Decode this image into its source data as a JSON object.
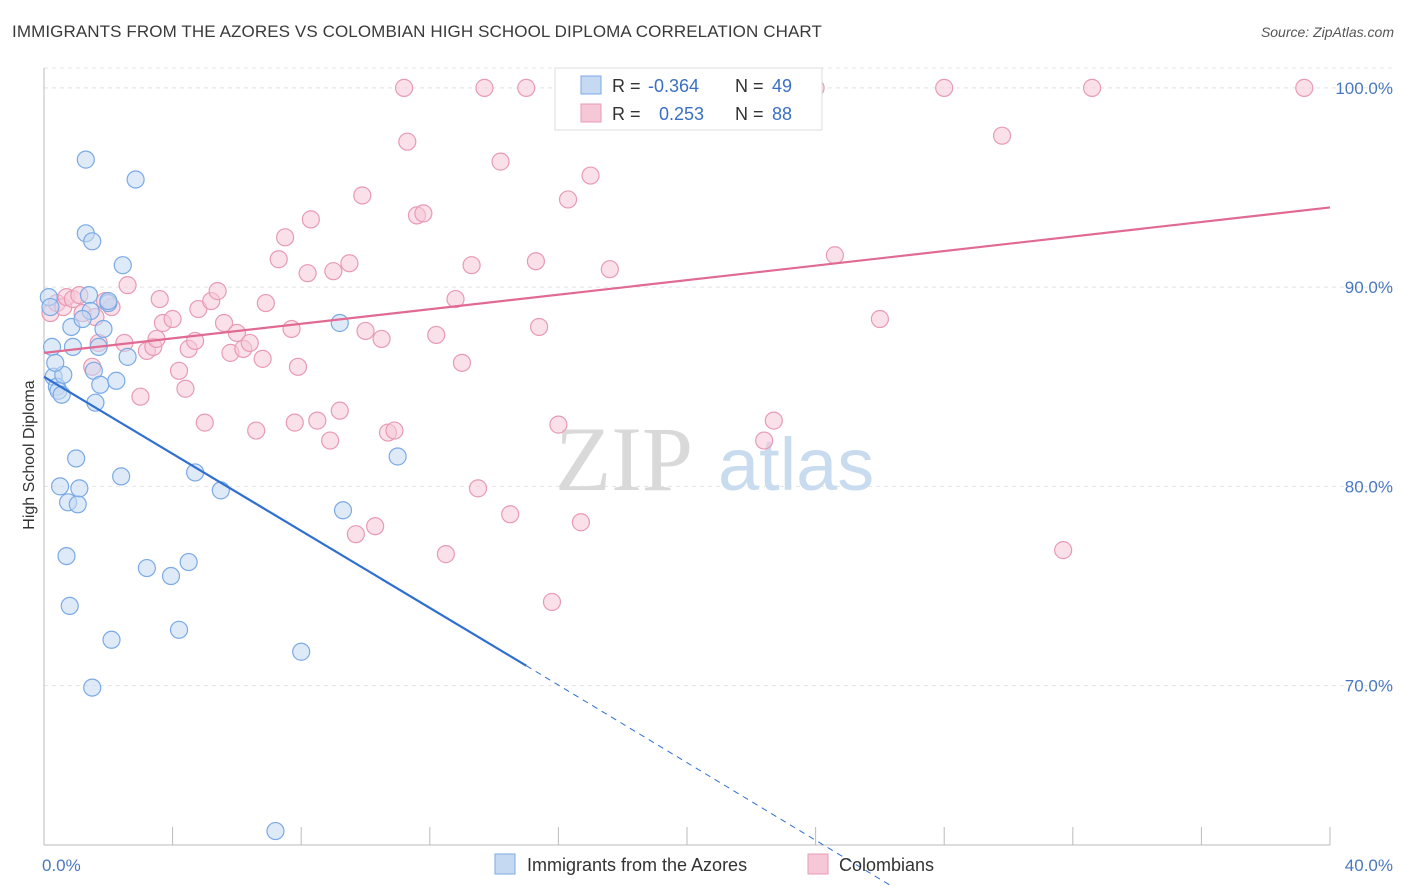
{
  "title": "IMMIGRANTS FROM THE AZORES VS COLOMBIAN HIGH SCHOOL DIPLOMA CORRELATION CHART",
  "source": "Source: ZipAtlas.com",
  "watermark": {
    "zip": "ZIP",
    "atlas": "atlas"
  },
  "legend_top": [
    {
      "r_label": "R =",
      "r_value": "-0.364",
      "n_label": "N =",
      "n_value": "49"
    },
    {
      "r_label": "R =",
      "r_value": "0.253",
      "n_label": "N =",
      "n_value": "88"
    }
  ],
  "legend_bottom": [
    "Immigrants from the Azores",
    "Colombians"
  ],
  "chart_data": {
    "type": "scatter",
    "title": "IMMIGRANTS FROM THE AZORES VS COLOMBIAN HIGH SCHOOL DIPLOMA CORRELATION CHART",
    "xlabel": "",
    "ylabel": "High School Diploma",
    "xlim": [
      0,
      40
    ],
    "ylim": [
      62,
      101.5
    ],
    "x_tick_labels": [
      "0.0%",
      "40.0%"
    ],
    "y_ticks": [
      70,
      80,
      90,
      100
    ],
    "y_tick_labels": [
      "70.0%",
      "80.0%",
      "90.0%",
      "100.0%"
    ],
    "grid": true,
    "legend": "top-center",
    "series": [
      {
        "name": "Immigrants from the Azores",
        "color": "#7aaae6",
        "fill": "#c5d9f3",
        "line_color": "#2e6fd0",
        "R": -0.364,
        "N": 49,
        "trend": {
          "x0": 0,
          "y0": 85.5,
          "x1": 15,
          "y1": 71.0,
          "dash_to_x": 26.3,
          "dash_to_y": 60.0
        },
        "points": [
          [
            0.15,
            89.5
          ],
          [
            0.2,
            89.0
          ],
          [
            0.25,
            87.0
          ],
          [
            0.3,
            85.5
          ],
          [
            0.4,
            85.0
          ],
          [
            0.45,
            84.8
          ],
          [
            0.5,
            80.0
          ],
          [
            0.6,
            85.6
          ],
          [
            0.7,
            76.5
          ],
          [
            0.75,
            79.2
          ],
          [
            0.8,
            74.0
          ],
          [
            0.85,
            88.0
          ],
          [
            0.9,
            87.0
          ],
          [
            1.0,
            81.4
          ],
          [
            1.05,
            79.1
          ],
          [
            1.1,
            79.9
          ],
          [
            1.3,
            96.4
          ],
          [
            1.3,
            92.7
          ],
          [
            1.4,
            89.6
          ],
          [
            1.45,
            88.8
          ],
          [
            1.5,
            92.3
          ],
          [
            1.5,
            69.9
          ],
          [
            1.55,
            85.8
          ],
          [
            1.6,
            84.2
          ],
          [
            1.7,
            87.0
          ],
          [
            1.75,
            85.1
          ],
          [
            1.85,
            87.9
          ],
          [
            2.0,
            89.2
          ],
          [
            2.1,
            72.3
          ],
          [
            2.25,
            85.3
          ],
          [
            2.4,
            80.5
          ],
          [
            2.45,
            91.1
          ],
          [
            2.6,
            86.5
          ],
          [
            2.85,
            95.4
          ],
          [
            3.2,
            75.9
          ],
          [
            3.95,
            75.5
          ],
          [
            4.2,
            72.8
          ],
          [
            4.5,
            76.2
          ],
          [
            4.7,
            80.7
          ],
          [
            5.5,
            79.8
          ],
          [
            7.2,
            62.7
          ],
          [
            8.0,
            71.7
          ],
          [
            9.2,
            88.2
          ],
          [
            9.3,
            78.8
          ],
          [
            11.0,
            81.5
          ],
          [
            0.35,
            86.2
          ],
          [
            0.55,
            84.6
          ],
          [
            1.2,
            88.4
          ],
          [
            2.0,
            89.3
          ]
        ]
      },
      {
        "name": "Colombians",
        "color": "#e89ab4",
        "fill": "#f6c8d7",
        "line_color": "#e06a92",
        "R": 0.253,
        "N": 88,
        "trend": {
          "x0": 0,
          "y0": 86.7,
          "x1": 40,
          "y1": 94.0
        },
        "points": [
          [
            0.2,
            88.7
          ],
          [
            0.4,
            89.2
          ],
          [
            0.6,
            89.0
          ],
          [
            0.7,
            89.5
          ],
          [
            0.9,
            89.4
          ],
          [
            1.1,
            89.6
          ],
          [
            1.2,
            88.7
          ],
          [
            1.5,
            86.0
          ],
          [
            1.6,
            88.5
          ],
          [
            1.7,
            87.2
          ],
          [
            1.9,
            89.3
          ],
          [
            2.1,
            89.0
          ],
          [
            2.5,
            87.2
          ],
          [
            2.6,
            90.1
          ],
          [
            3.0,
            84.5
          ],
          [
            3.2,
            86.8
          ],
          [
            3.4,
            87.0
          ],
          [
            3.5,
            87.4
          ],
          [
            3.6,
            89.4
          ],
          [
            3.7,
            88.2
          ],
          [
            4.0,
            88.4
          ],
          [
            4.2,
            85.8
          ],
          [
            4.4,
            84.9
          ],
          [
            4.5,
            86.9
          ],
          [
            4.7,
            87.3
          ],
          [
            4.8,
            88.9
          ],
          [
            5.0,
            83.2
          ],
          [
            5.2,
            89.3
          ],
          [
            5.4,
            89.8
          ],
          [
            5.6,
            88.2
          ],
          [
            5.8,
            86.7
          ],
          [
            6.0,
            87.7
          ],
          [
            6.2,
            86.9
          ],
          [
            6.4,
            87.2
          ],
          [
            6.6,
            82.8
          ],
          [
            6.8,
            86.4
          ],
          [
            6.9,
            89.2
          ],
          [
            7.3,
            91.4
          ],
          [
            7.5,
            92.5
          ],
          [
            7.7,
            87.9
          ],
          [
            7.8,
            83.2
          ],
          [
            7.9,
            86.0
          ],
          [
            8.2,
            90.7
          ],
          [
            8.3,
            93.4
          ],
          [
            8.5,
            83.3
          ],
          [
            8.9,
            82.3
          ],
          [
            9.0,
            90.8
          ],
          [
            9.2,
            83.8
          ],
          [
            9.5,
            91.2
          ],
          [
            9.7,
            77.6
          ],
          [
            9.9,
            94.6
          ],
          [
            10.0,
            87.8
          ],
          [
            10.3,
            78.0
          ],
          [
            10.5,
            87.4
          ],
          [
            10.7,
            82.7
          ],
          [
            10.9,
            82.8
          ],
          [
            11.2,
            100.0
          ],
          [
            11.3,
            97.3
          ],
          [
            11.6,
            93.6
          ],
          [
            11.8,
            93.7
          ],
          [
            12.2,
            87.6
          ],
          [
            12.5,
            76.6
          ],
          [
            12.8,
            89.4
          ],
          [
            13.0,
            86.2
          ],
          [
            13.3,
            91.1
          ],
          [
            13.5,
            79.9
          ],
          [
            13.7,
            100.0
          ],
          [
            14.2,
            96.3
          ],
          [
            14.5,
            78.6
          ],
          [
            15.0,
            100.0
          ],
          [
            15.3,
            91.3
          ],
          [
            15.4,
            88.0
          ],
          [
            15.8,
            74.2
          ],
          [
            16.0,
            83.1
          ],
          [
            16.3,
            94.4
          ],
          [
            16.7,
            78.2
          ],
          [
            17.0,
            95.6
          ],
          [
            17.6,
            90.9
          ],
          [
            22.4,
            82.3
          ],
          [
            22.7,
            83.3
          ],
          [
            24.0,
            100.0
          ],
          [
            24.6,
            91.6
          ],
          [
            26.0,
            88.4
          ],
          [
            28.0,
            100.0
          ],
          [
            29.8,
            97.6
          ],
          [
            31.7,
            76.8
          ],
          [
            32.6,
            100.0
          ],
          [
            39.2,
            100.0
          ]
        ]
      }
    ]
  }
}
